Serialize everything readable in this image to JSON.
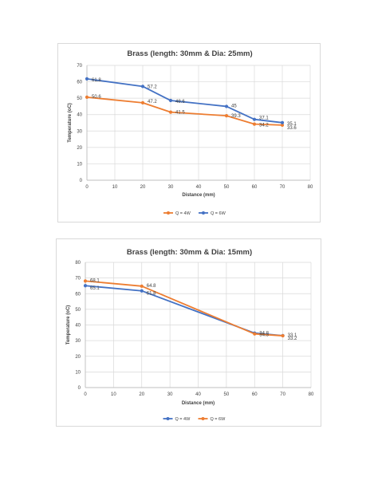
{
  "chart_data": [
    {
      "type": "line",
      "title": "Brass (length: 30mm & Dia: 25mm)",
      "xlabel": "Distance (mm)",
      "ylabel": "Temperature (oC)",
      "xlim": [
        0,
        80
      ],
      "ylim": [
        0,
        70
      ],
      "x_ticks": [
        0,
        10,
        20,
        30,
        40,
        50,
        60,
        70,
        80
      ],
      "y_ticks": [
        0,
        10,
        20,
        30,
        40,
        50,
        60,
        70
      ],
      "grid": true,
      "legend_position": "bottom",
      "series": [
        {
          "name": "Q = 4W",
          "color": "#ED7D31",
          "x": [
            0,
            20,
            30,
            50,
            60,
            70
          ],
          "values": [
            50.6,
            47.2,
            41.5,
            39.3,
            34.2,
            33.6
          ],
          "labels": [
            "50.6",
            "47.2",
            "41.5",
            "39.3",
            "34.2",
            "33.6"
          ]
        },
        {
          "name": "Q = 6W",
          "color": "#4472C4",
          "x": [
            0,
            20,
            30,
            50,
            60,
            70
          ],
          "values": [
            61.8,
            57.2,
            48.6,
            45,
            37.1,
            35.1
          ],
          "labels": [
            "61.8",
            "57.2",
            "48.6",
            "45",
            "37.1",
            "35.1"
          ]
        }
      ]
    },
    {
      "type": "line",
      "title": "Brass (length: 30mm & Dia: 15mm)",
      "xlabel": "Distance (mm)",
      "ylabel": "Temperature (oC)",
      "xlim": [
        0,
        80
      ],
      "ylim": [
        0,
        80
      ],
      "x_ticks": [
        0,
        10,
        20,
        30,
        40,
        50,
        60,
        70,
        80
      ],
      "y_ticks": [
        0,
        10,
        20,
        30,
        40,
        50,
        60,
        70,
        80
      ],
      "grid": true,
      "legend_position": "bottom",
      "series": [
        {
          "name": "Q = 4W",
          "color": "#4472C4",
          "x": [
            0,
            20,
            60,
            70
          ],
          "values": [
            65.1,
            61.8,
            34.8,
            33.2
          ],
          "labels": [
            "65.1",
            "61.8",
            "34.8",
            "33.2"
          ]
        },
        {
          "name": "Q = 6W",
          "color": "#ED7D31",
          "x": [
            0,
            20,
            60,
            70
          ],
          "values": [
            68.1,
            64.8,
            34.3,
            33.1
          ],
          "labels": [
            "68.1",
            "64.8",
            "34.3",
            "33.1"
          ]
        }
      ]
    }
  ]
}
